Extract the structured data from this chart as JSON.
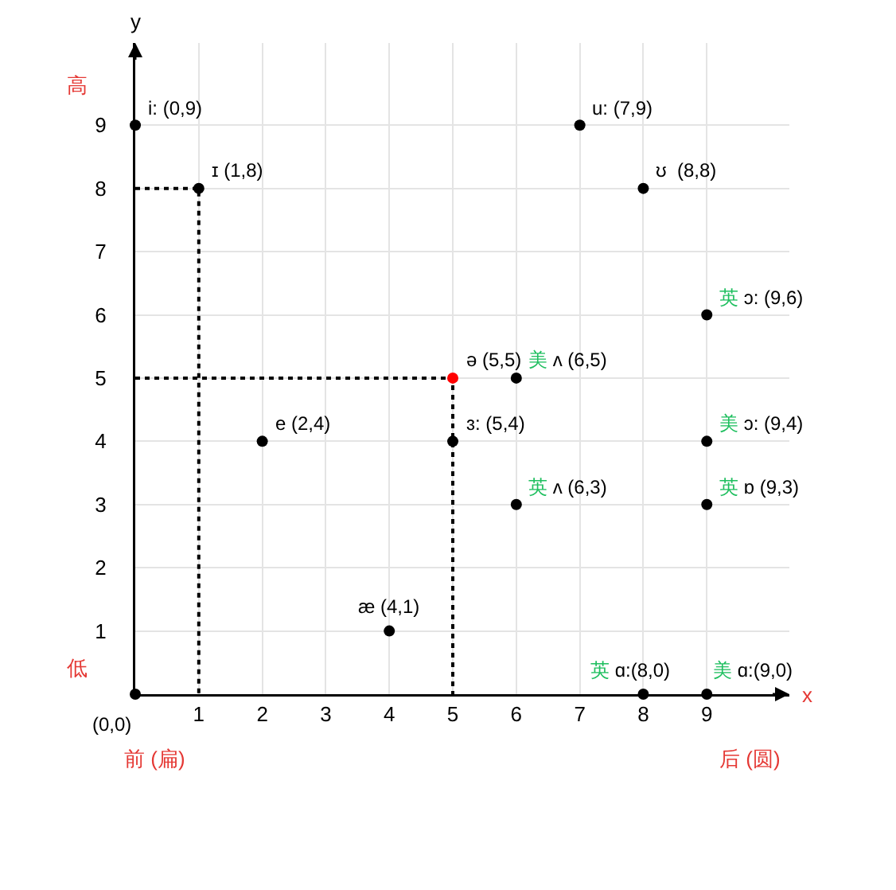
{
  "chart_data": {
    "type": "scatter",
    "xlabel": "x",
    "ylabel": "y",
    "xlim": [
      0,
      10.3
    ],
    "ylim": [
      0,
      10.3
    ],
    "xticks": [
      1,
      2,
      3,
      4,
      5,
      6,
      7,
      8,
      9
    ],
    "yticks": [
      1,
      2,
      3,
      4,
      5,
      6,
      7,
      8,
      9
    ],
    "grid": true,
    "marker": "circle",
    "series": [
      {
        "type": "line",
        "marker": "none",
        "line_style": "dotted",
        "color": "#000000",
        "x": [
          0,
          1,
          1
        ],
        "values": [
          8,
          8,
          0
        ]
      },
      {
        "type": "line",
        "marker": "none",
        "line_style": "dotted",
        "color": "#000000",
        "x": [
          0,
          5,
          5
        ],
        "values": [
          5,
          5,
          0
        ]
      },
      {
        "x": [
          0,
          0,
          1,
          2,
          4,
          5,
          5,
          6,
          6,
          7,
          8,
          9,
          9,
          9,
          8,
          9
        ],
        "values": [
          0,
          9,
          8,
          4,
          1,
          5,
          4,
          5,
          3,
          9,
          8,
          6,
          4,
          3,
          0,
          0
        ],
        "colors": [
          "#000000",
          "#000000",
          "#000000",
          "#000000",
          "#000000",
          "#ff0000",
          "#000000",
          "#000000",
          "#000000",
          "#000000",
          "#000000",
          "#000000",
          "#000000",
          "#000000",
          "#000000",
          "#000000"
        ]
      }
    ],
    "annotations": [
      {
        "text": "(0,0)",
        "x": 0,
        "y": 0
      },
      {
        "text": "i: (0,9)",
        "x": 0,
        "y": 9
      },
      {
        "text": "ɪ (1,8)",
        "x": 1,
        "y": 8
      },
      {
        "text": "e (2,4)",
        "x": 2,
        "y": 4
      },
      {
        "text": "æ (4,1)",
        "x": 4,
        "y": 1
      },
      {
        "text": "ə (5,5)",
        "x": 5,
        "y": 5
      },
      {
        "text": "ɜ: (5,4)",
        "x": 5,
        "y": 4
      },
      {
        "text": "美 ʌ (6,5)",
        "x": 6,
        "y": 5
      },
      {
        "text": "英 ʌ (6,3)",
        "x": 6,
        "y": 3
      },
      {
        "text": "u: (7,9)",
        "x": 7,
        "y": 9
      },
      {
        "text": "ʊ  (8,8)",
        "x": 8,
        "y": 8
      },
      {
        "text": "英 ɔ: (9,6)",
        "x": 9,
        "y": 6
      },
      {
        "text": "美 ɔ: (9,4)",
        "x": 9,
        "y": 4
      },
      {
        "text": "英 ɒ (9,3)",
        "x": 9,
        "y": 3
      },
      {
        "text": "英 ɑ:(8,0)",
        "x": 8,
        "y": 0
      },
      {
        "text": "美 ɑ:(9,0)",
        "x": 9,
        "y": 0
      },
      "高",
      "低",
      "前 (扁)",
      "后 (圆)"
    ]
  }
}
